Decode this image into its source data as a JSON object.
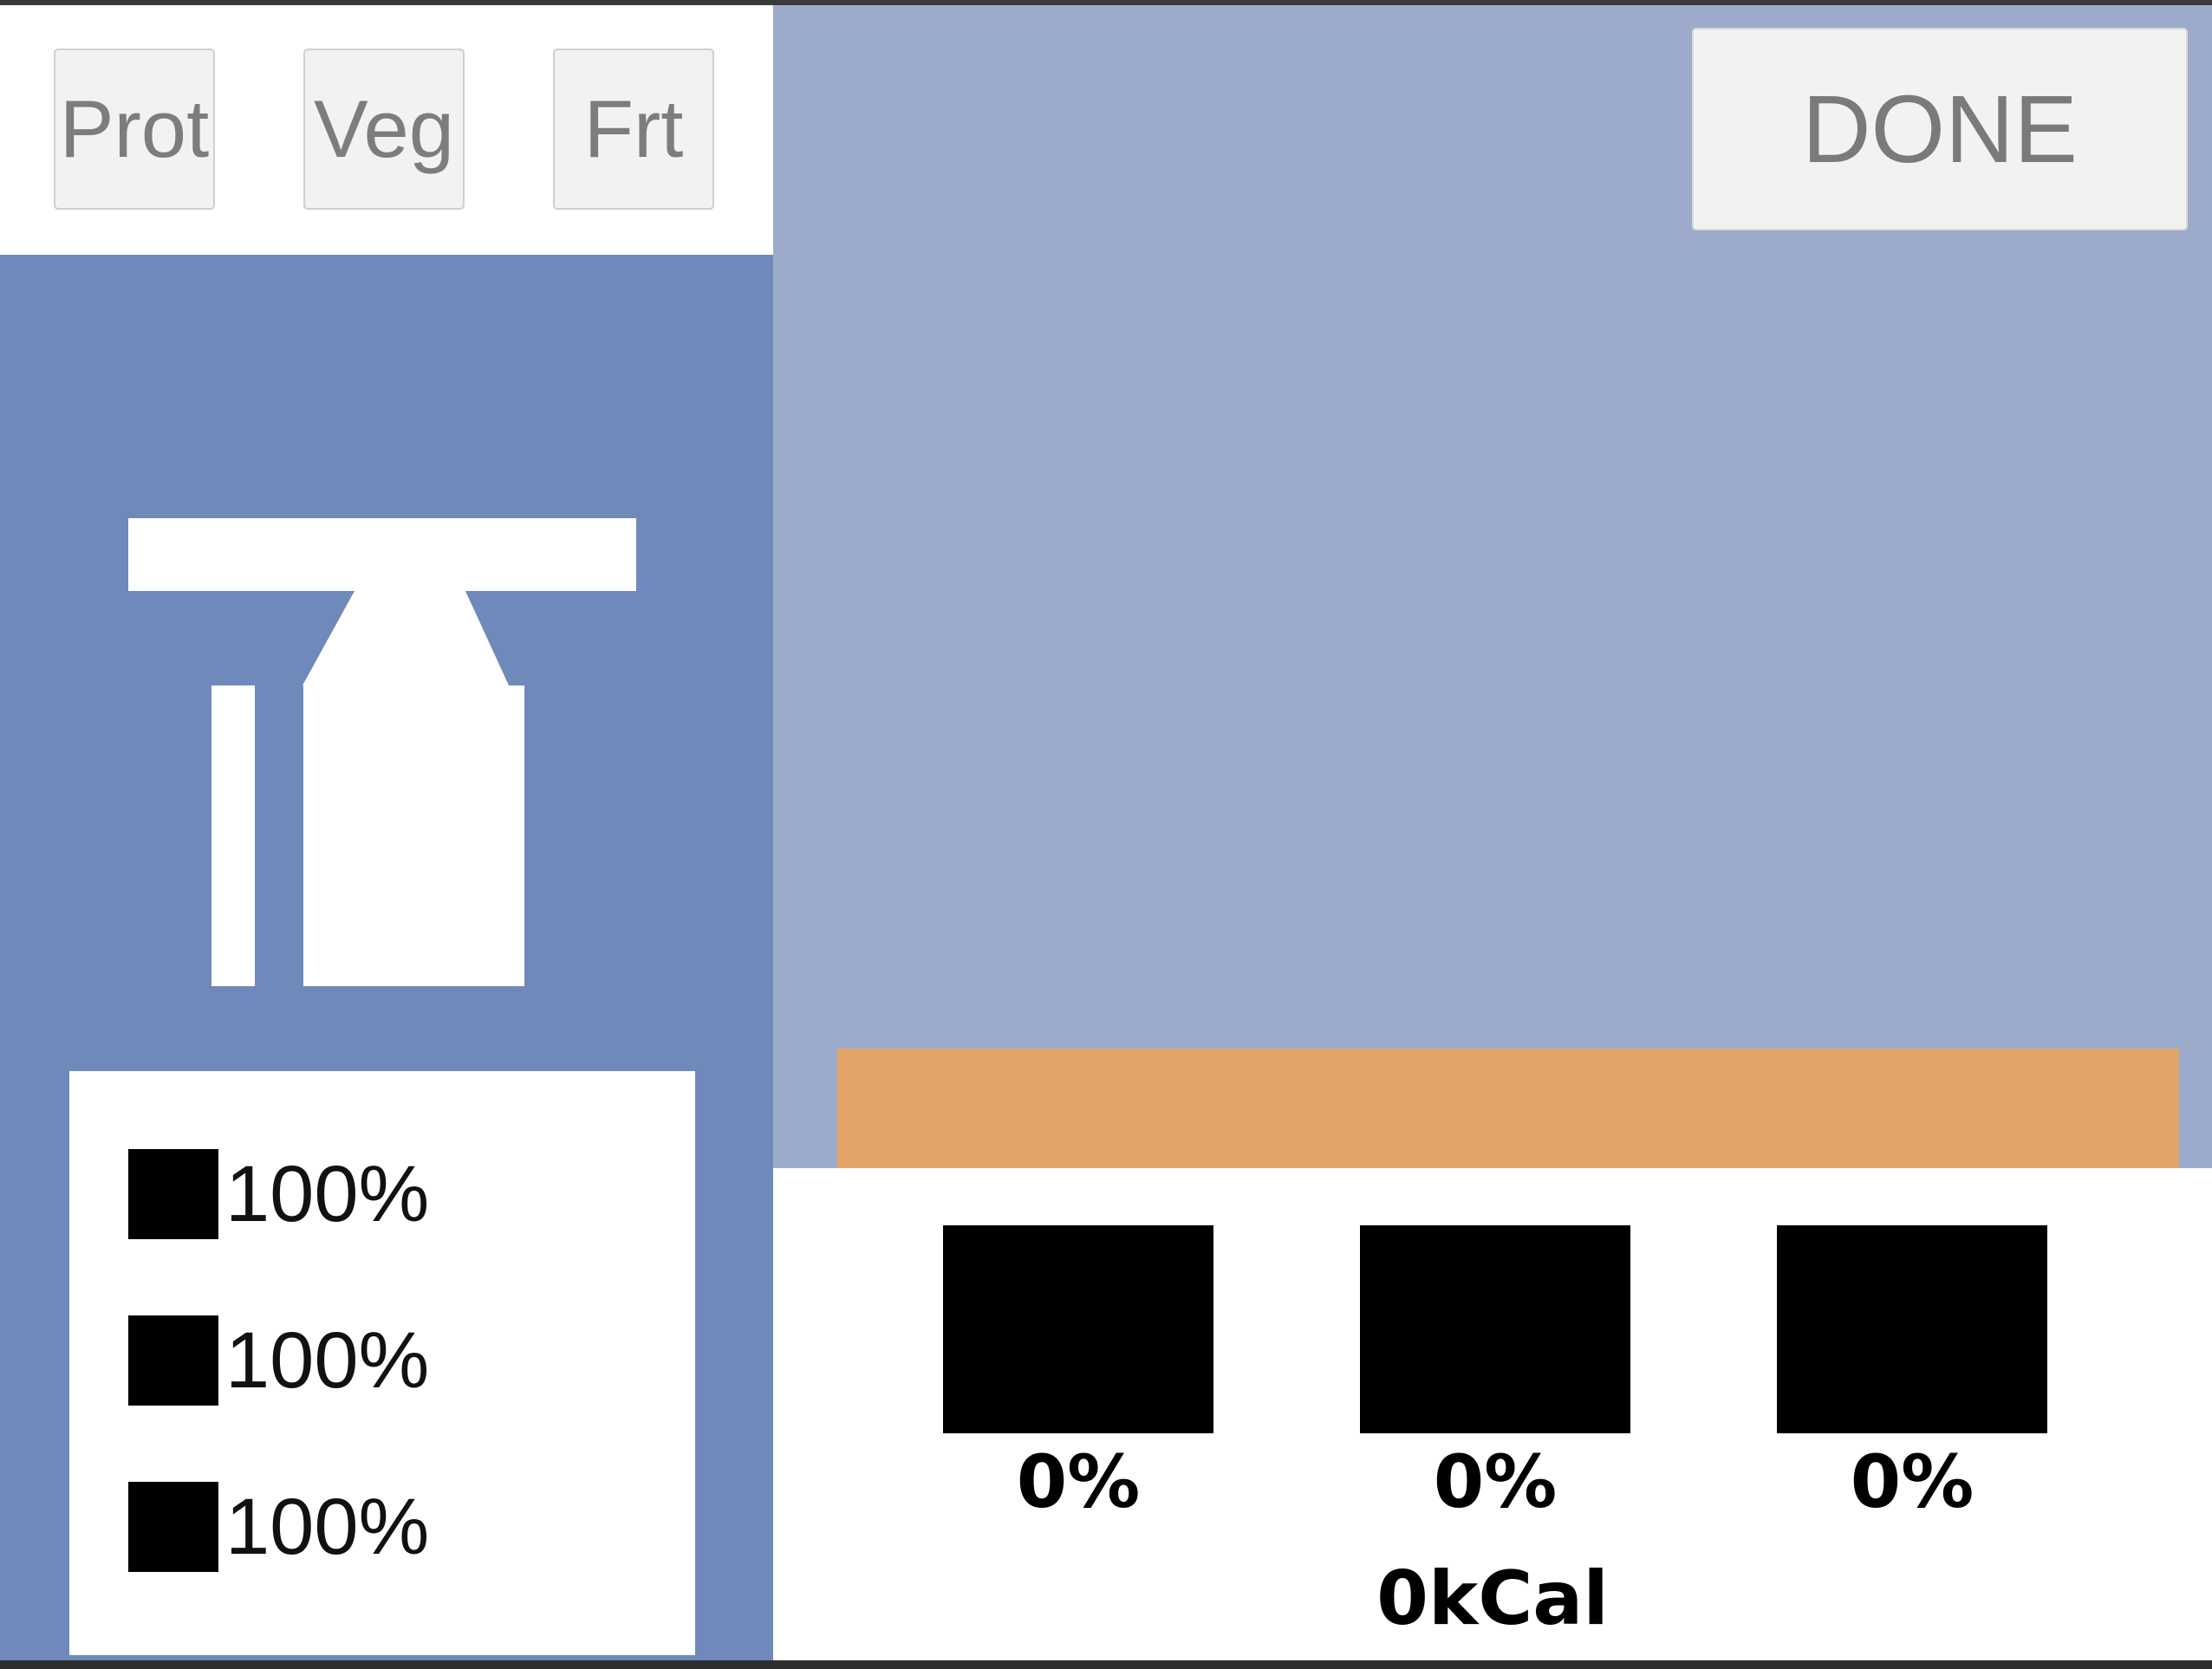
{
  "categories": [
    {
      "label": "Prot"
    },
    {
      "label": "Veg"
    },
    {
      "label": "Frt"
    }
  ],
  "done_label": "DONE",
  "scale_icon": "scale-icon",
  "legend": [
    {
      "value": "100%"
    },
    {
      "value": "100%"
    },
    {
      "value": "100%"
    }
  ],
  "nutrients": [
    {
      "percent": "0%"
    },
    {
      "percent": "0%"
    },
    {
      "percent": "0%"
    }
  ],
  "calories": "0kCal",
  "colors": {
    "background": "#9cabcb",
    "left_panel": "#6f89ba",
    "progress_bar": "#e2a469",
    "panel": "#ffffff",
    "swatch": "#000000"
  }
}
